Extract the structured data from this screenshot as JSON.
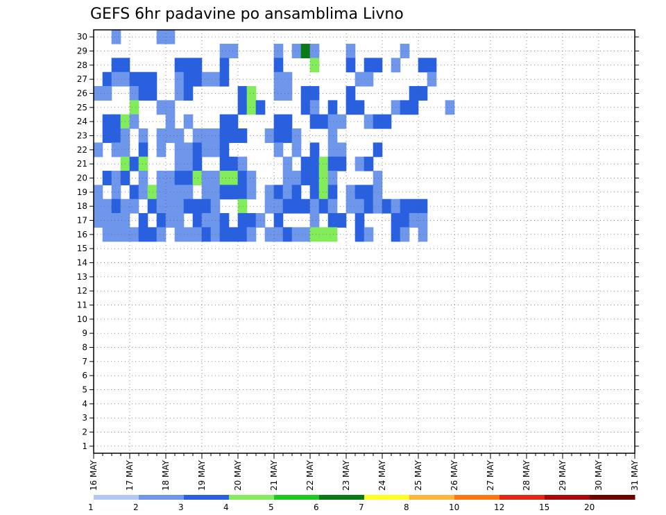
{
  "chart_data": {
    "type": "heatmap",
    "title": "GEFS 6hr padavine po ansamblima Livno",
    "x_ticks": [
      "16 MAY",
      "17 MAY",
      "18 MAY",
      "19 MAY",
      "20 MAY",
      "21 MAY",
      "22 MAY",
      "23 MAY",
      "24 MAY",
      "25 MAY",
      "26 MAY",
      "27 MAY",
      "28 MAY",
      "29 MAY",
      "30 MAY",
      "31 MAY"
    ],
    "x_range": [
      0,
      60
    ],
    "y_ticks": [
      "1",
      "2",
      "3",
      "4",
      "5",
      "6",
      "7",
      "8",
      "9",
      "10",
      "11",
      "12",
      "13",
      "14",
      "15",
      "16",
      "17",
      "18",
      "19",
      "20",
      "21",
      "22",
      "23",
      "24",
      "25",
      "26",
      "27",
      "28",
      "29",
      "30"
    ],
    "y_range": [
      0.5,
      30.5
    ],
    "grid": true,
    "colorbar": {
      "labels": [
        "1",
        "2",
        "3",
        "4",
        "5",
        "6",
        "7",
        "8",
        "10",
        "12",
        "15",
        "20"
      ],
      "colors": [
        "#b4c8f5",
        "#6e96ea",
        "#2860e0",
        "#82ec5a",
        "#1ec81e",
        "#0a7a14",
        "#ffff28",
        "#ffb43c",
        "#ff7814",
        "#e02814",
        "#a80a0a",
        "#6e0000"
      ]
    },
    "cells": [
      [
        2,
        1,
        30
      ],
      [
        7,
        1,
        30
      ],
      [
        8,
        1,
        30
      ],
      [
        14,
        1,
        29
      ],
      [
        15,
        1,
        29
      ],
      [
        20,
        1,
        29
      ],
      [
        22,
        1,
        29
      ],
      [
        23,
        1,
        29
      ],
      [
        23,
        5,
        29
      ],
      [
        24,
        1,
        29
      ],
      [
        28,
        1,
        29
      ],
      [
        34,
        1,
        29
      ],
      [
        2,
        2,
        28
      ],
      [
        3,
        2,
        28
      ],
      [
        9,
        2,
        28
      ],
      [
        10,
        2,
        28
      ],
      [
        11,
        2,
        28
      ],
      [
        14,
        2,
        28
      ],
      [
        20,
        2,
        28
      ],
      [
        24,
        3,
        28
      ],
      [
        28,
        2,
        28
      ],
      [
        30,
        2,
        28
      ],
      [
        31,
        2,
        28
      ],
      [
        33,
        1,
        28
      ],
      [
        36,
        2,
        28
      ],
      [
        37,
        2,
        28
      ],
      [
        1,
        2,
        27
      ],
      [
        2,
        1,
        27
      ],
      [
        3,
        1,
        27
      ],
      [
        4,
        2,
        27
      ],
      [
        5,
        2,
        27
      ],
      [
        6,
        2,
        27
      ],
      [
        9,
        1,
        27
      ],
      [
        10,
        2,
        27
      ],
      [
        11,
        2,
        27
      ],
      [
        12,
        1,
        27
      ],
      [
        13,
        1,
        27
      ],
      [
        14,
        2,
        27
      ],
      [
        20,
        1,
        27
      ],
      [
        21,
        1,
        27
      ],
      [
        29,
        1,
        27
      ],
      [
        30,
        1,
        27
      ],
      [
        37,
        1,
        27
      ],
      [
        0,
        1,
        26
      ],
      [
        1,
        1,
        26
      ],
      [
        4,
        1,
        26
      ],
      [
        5,
        2,
        26
      ],
      [
        6,
        2,
        26
      ],
      [
        9,
        1,
        26
      ],
      [
        10,
        2,
        26
      ],
      [
        16,
        2,
        26
      ],
      [
        17,
        3,
        26
      ],
      [
        20,
        1,
        26
      ],
      [
        21,
        1,
        26
      ],
      [
        23,
        2,
        26
      ],
      [
        24,
        2,
        26
      ],
      [
        28,
        2,
        26
      ],
      [
        35,
        2,
        26
      ],
      [
        36,
        2,
        26
      ],
      [
        4,
        3,
        25
      ],
      [
        7,
        1,
        25
      ],
      [
        8,
        1,
        25
      ],
      [
        16,
        2,
        25
      ],
      [
        17,
        3,
        25
      ],
      [
        18,
        2,
        25
      ],
      [
        23,
        2,
        25
      ],
      [
        24,
        1,
        25
      ],
      [
        26,
        2,
        25
      ],
      [
        28,
        2,
        25
      ],
      [
        29,
        2,
        25
      ],
      [
        33,
        1,
        25
      ],
      [
        34,
        2,
        25
      ],
      [
        35,
        2,
        25
      ],
      [
        39,
        1,
        25
      ],
      [
        1,
        2,
        24
      ],
      [
        2,
        2,
        24
      ],
      [
        3,
        3,
        24
      ],
      [
        4,
        1,
        24
      ],
      [
        8,
        1,
        24
      ],
      [
        10,
        1,
        24
      ],
      [
        14,
        2,
        24
      ],
      [
        15,
        2,
        24
      ],
      [
        20,
        2,
        24
      ],
      [
        21,
        2,
        24
      ],
      [
        24,
        2,
        24
      ],
      [
        25,
        2,
        24
      ],
      [
        26,
        1,
        24
      ],
      [
        27,
        1,
        24
      ],
      [
        30,
        1,
        24
      ],
      [
        31,
        2,
        24
      ],
      [
        32,
        2,
        24
      ],
      [
        1,
        2,
        23
      ],
      [
        2,
        2,
        23
      ],
      [
        3,
        1,
        23
      ],
      [
        5,
        1,
        23
      ],
      [
        7,
        1,
        23
      ],
      [
        8,
        1,
        23
      ],
      [
        9,
        1,
        23
      ],
      [
        11,
        1,
        23
      ],
      [
        12,
        1,
        23
      ],
      [
        13,
        1,
        23
      ],
      [
        14,
        2,
        23
      ],
      [
        15,
        2,
        23
      ],
      [
        16,
        2,
        23
      ],
      [
        19,
        1,
        23
      ],
      [
        20,
        2,
        23
      ],
      [
        21,
        2,
        23
      ],
      [
        22,
        1,
        23
      ],
      [
        26,
        1,
        23
      ],
      [
        0,
        1,
        22
      ],
      [
        2,
        1,
        22
      ],
      [
        3,
        1,
        22
      ],
      [
        5,
        2,
        22
      ],
      [
        7,
        1,
        22
      ],
      [
        9,
        1,
        22
      ],
      [
        10,
        1,
        22
      ],
      [
        11,
        2,
        22
      ],
      [
        12,
        1,
        22
      ],
      [
        13,
        1,
        22
      ],
      [
        14,
        2,
        22
      ],
      [
        20,
        1,
        22
      ],
      [
        22,
        1,
        22
      ],
      [
        24,
        2,
        22
      ],
      [
        26,
        1,
        22
      ],
      [
        27,
        1,
        22
      ],
      [
        31,
        2,
        22
      ],
      [
        3,
        3,
        21
      ],
      [
        4,
        2,
        21
      ],
      [
        5,
        3,
        21
      ],
      [
        9,
        1,
        21
      ],
      [
        10,
        1,
        21
      ],
      [
        11,
        2,
        21
      ],
      [
        14,
        2,
        21
      ],
      [
        15,
        2,
        21
      ],
      [
        16,
        1,
        21
      ],
      [
        21,
        1,
        21
      ],
      [
        23,
        2,
        21
      ],
      [
        24,
        2,
        21
      ],
      [
        25,
        3,
        21
      ],
      [
        26,
        2,
        21
      ],
      [
        27,
        2,
        21
      ],
      [
        29,
        1,
        21
      ],
      [
        30,
        2,
        21
      ],
      [
        1,
        2,
        20
      ],
      [
        2,
        1,
        20
      ],
      [
        3,
        2,
        20
      ],
      [
        5,
        1,
        20
      ],
      [
        7,
        1,
        20
      ],
      [
        8,
        1,
        20
      ],
      [
        9,
        2,
        20
      ],
      [
        10,
        2,
        20
      ],
      [
        11,
        3,
        20
      ],
      [
        12,
        1,
        20
      ],
      [
        13,
        1,
        20
      ],
      [
        14,
        3,
        20
      ],
      [
        15,
        3,
        20
      ],
      [
        16,
        2,
        20
      ],
      [
        17,
        1,
        20
      ],
      [
        21,
        1,
        20
      ],
      [
        22,
        1,
        20
      ],
      [
        23,
        2,
        20
      ],
      [
        24,
        2,
        20
      ],
      [
        25,
        3,
        20
      ],
      [
        26,
        1,
        20
      ],
      [
        31,
        1,
        20
      ],
      [
        0,
        1,
        19
      ],
      [
        2,
        1,
        19
      ],
      [
        4,
        2,
        19
      ],
      [
        5,
        1,
        19
      ],
      [
        6,
        3,
        19
      ],
      [
        7,
        1,
        19
      ],
      [
        8,
        1,
        19
      ],
      [
        9,
        1,
        19
      ],
      [
        10,
        1,
        19
      ],
      [
        12,
        1,
        19
      ],
      [
        13,
        1,
        19
      ],
      [
        14,
        2,
        19
      ],
      [
        15,
        2,
        19
      ],
      [
        16,
        2,
        19
      ],
      [
        17,
        1,
        19
      ],
      [
        19,
        1,
        19
      ],
      [
        20,
        2,
        19
      ],
      [
        21,
        1,
        19
      ],
      [
        22,
        2,
        19
      ],
      [
        24,
        2,
        19
      ],
      [
        25,
        3,
        19
      ],
      [
        26,
        2,
        19
      ],
      [
        28,
        1,
        19
      ],
      [
        29,
        2,
        19
      ],
      [
        30,
        2,
        19
      ],
      [
        31,
        1,
        19
      ],
      [
        0,
        1,
        18
      ],
      [
        1,
        1,
        18
      ],
      [
        2,
        2,
        18
      ],
      [
        3,
        1,
        18
      ],
      [
        4,
        1,
        18
      ],
      [
        6,
        2,
        18
      ],
      [
        7,
        1,
        18
      ],
      [
        8,
        1,
        18
      ],
      [
        9,
        1,
        18
      ],
      [
        10,
        2,
        18
      ],
      [
        11,
        2,
        18
      ],
      [
        12,
        2,
        18
      ],
      [
        13,
        1,
        18
      ],
      [
        16,
        3,
        18
      ],
      [
        19,
        1,
        18
      ],
      [
        20,
        1,
        18
      ],
      [
        21,
        2,
        18
      ],
      [
        22,
        2,
        18
      ],
      [
        23,
        2,
        18
      ],
      [
        24,
        1,
        18
      ],
      [
        25,
        2,
        18
      ],
      [
        26,
        1,
        18
      ],
      [
        28,
        1,
        18
      ],
      [
        29,
        1,
        18
      ],
      [
        30,
        2,
        18
      ],
      [
        31,
        1,
        18
      ],
      [
        32,
        2,
        18
      ],
      [
        33,
        1,
        18
      ],
      [
        34,
        2,
        18
      ],
      [
        35,
        2,
        18
      ],
      [
        36,
        2,
        18
      ],
      [
        0,
        1,
        17
      ],
      [
        1,
        1,
        17
      ],
      [
        2,
        1,
        17
      ],
      [
        3,
        1,
        17
      ],
      [
        5,
        2,
        17
      ],
      [
        7,
        2,
        17
      ],
      [
        8,
        1,
        17
      ],
      [
        9,
        1,
        17
      ],
      [
        11,
        2,
        17
      ],
      [
        12,
        1,
        17
      ],
      [
        13,
        1,
        17
      ],
      [
        14,
        2,
        17
      ],
      [
        16,
        2,
        17
      ],
      [
        17,
        2,
        17
      ],
      [
        18,
        1,
        17
      ],
      [
        20,
        2,
        17
      ],
      [
        24,
        1,
        17
      ],
      [
        26,
        2,
        17
      ],
      [
        27,
        2,
        17
      ],
      [
        29,
        2,
        17
      ],
      [
        33,
        2,
        17
      ],
      [
        34,
        2,
        17
      ],
      [
        35,
        1,
        17
      ],
      [
        36,
        1,
        17
      ],
      [
        1,
        1,
        16
      ],
      [
        2,
        1,
        16
      ],
      [
        3,
        1,
        16
      ],
      [
        4,
        1,
        16
      ],
      [
        5,
        2,
        16
      ],
      [
        6,
        2,
        16
      ],
      [
        7,
        1,
        16
      ],
      [
        9,
        1,
        16
      ],
      [
        10,
        1,
        16
      ],
      [
        11,
        1,
        16
      ],
      [
        12,
        2,
        16
      ],
      [
        13,
        1,
        16
      ],
      [
        14,
        2,
        16
      ],
      [
        15,
        2,
        16
      ],
      [
        16,
        2,
        16
      ],
      [
        17,
        1,
        16
      ],
      [
        19,
        1,
        16
      ],
      [
        20,
        1,
        16
      ],
      [
        21,
        2,
        16
      ],
      [
        22,
        1,
        16
      ],
      [
        23,
        1,
        16
      ],
      [
        24,
        3,
        16
      ],
      [
        25,
        3,
        16
      ],
      [
        26,
        3,
        16
      ],
      [
        29,
        2,
        16
      ],
      [
        30,
        1,
        16
      ],
      [
        33,
        2,
        16
      ],
      [
        34,
        1,
        16
      ],
      [
        36,
        1,
        16
      ]
    ]
  }
}
